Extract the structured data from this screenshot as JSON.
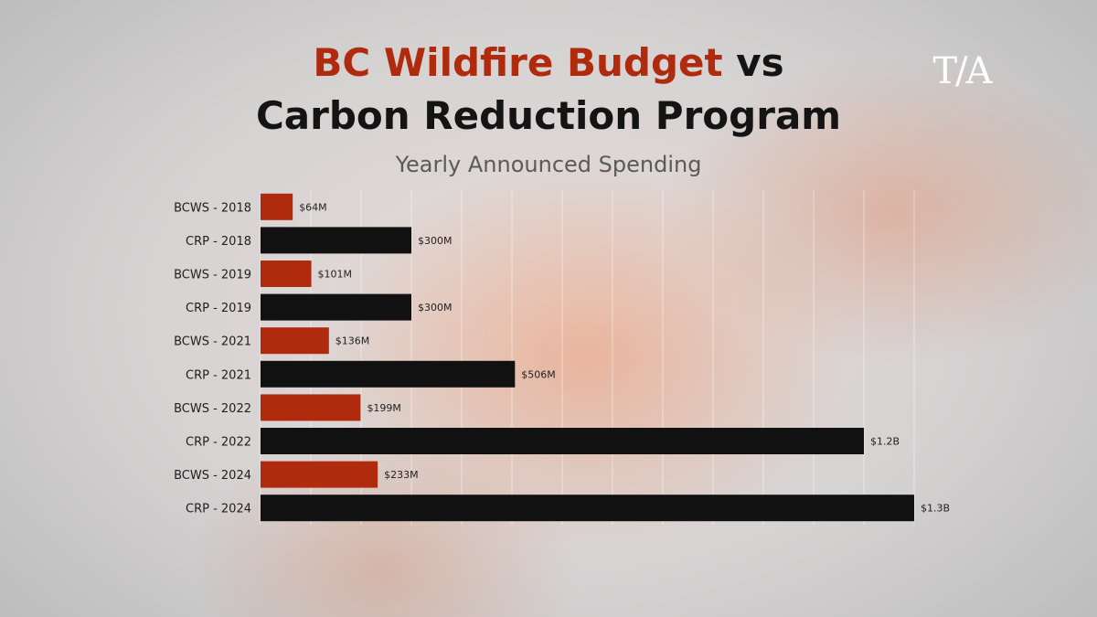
{
  "header": {
    "title_part1": "BC Wildfire Budget",
    "title_part2": " vs",
    "title_line2": "Carbon Reduction Program",
    "subtitle": "Yearly Announced Spending"
  },
  "logo": {
    "text": "T/A"
  },
  "colors": {
    "bcws": "#b02a0e",
    "crp": "#111111"
  },
  "chart_data": {
    "type": "bar",
    "orientation": "horizontal",
    "title": "BC Wildfire Budget vs Carbon Reduction Program",
    "subtitle": "Yearly Announced Spending",
    "xlim": [
      0,
      1300
    ],
    "grid": true,
    "categories": [
      "BCWS - 2018",
      "CRP - 2018",
      "BCWS - 2019",
      "CRP - 2019",
      "BCWS - 2021",
      "CRP - 2021",
      "BCWS - 2022",
      "CRP - 2022",
      "BCWS - 2024",
      "CRP - 2024"
    ],
    "values": [
      64,
      300,
      101,
      300,
      136,
      506,
      199,
      1200,
      233,
      1300
    ],
    "value_labels": [
      "$64M",
      "$300M",
      "$101M",
      "$300M",
      "$136M",
      "$506M",
      "$199M",
      "$1.2B",
      "$233M",
      "$1.3B"
    ],
    "bar_colors": [
      "#b02a0e",
      "#111111",
      "#b02a0e",
      "#111111",
      "#b02a0e",
      "#111111",
      "#b02a0e",
      "#111111",
      "#b02a0e",
      "#111111"
    ]
  }
}
